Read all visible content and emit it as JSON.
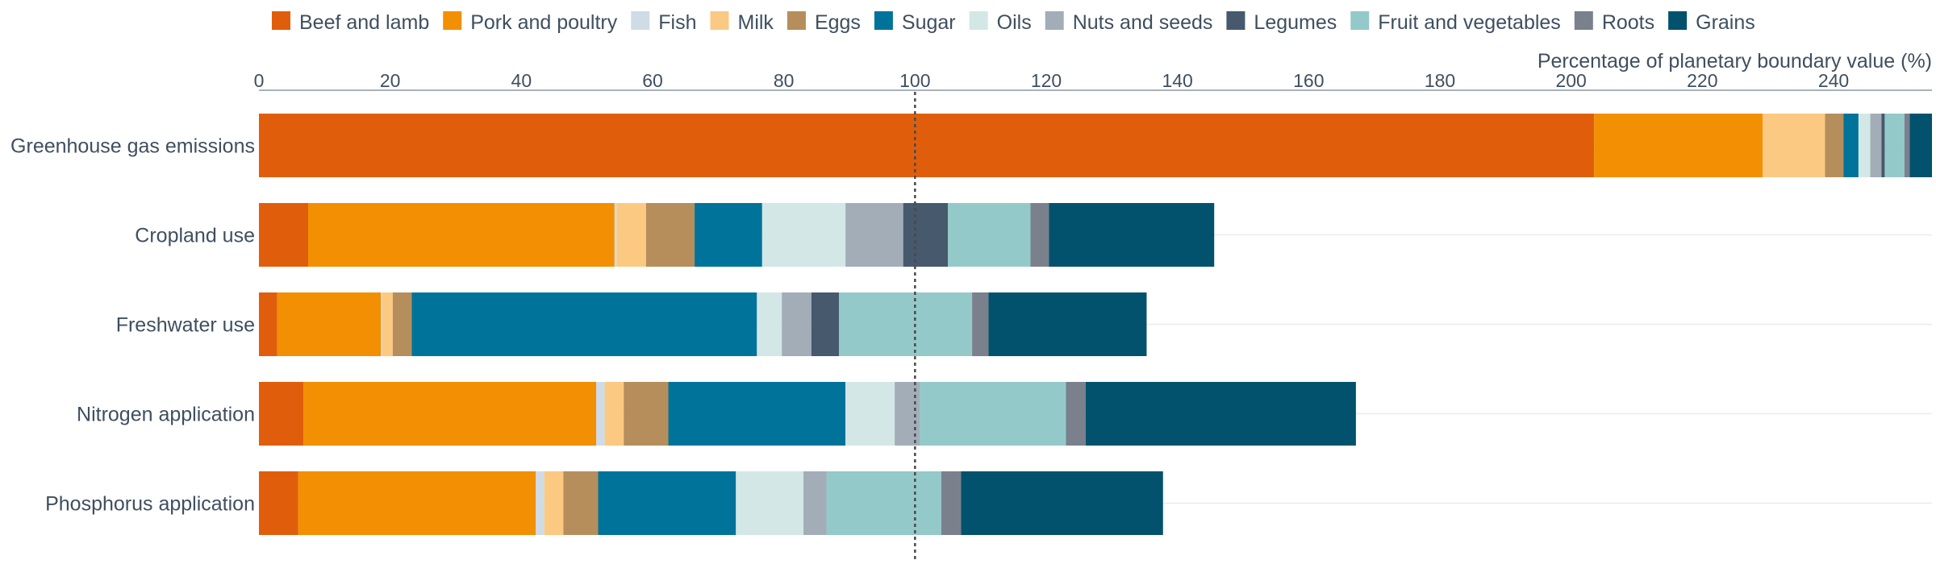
{
  "chart_data": {
    "type": "bar",
    "orientation": "horizontal",
    "stacked": true,
    "xlabel": "Percentage of planetary boundary value (%)",
    "xlim": [
      0,
      255
    ],
    "xticks": [
      0,
      20,
      40,
      60,
      80,
      100,
      120,
      140,
      160,
      180,
      200,
      220,
      240
    ],
    "reference_line": 100,
    "grid": "horizontal row lines",
    "legend_position": "top",
    "categories": [
      "Greenhouse gas emissions",
      "Cropland use",
      "Freshwater use",
      "Nitrogen application",
      "Phosphorus application"
    ],
    "series": [
      {
        "name": "Beef and lamb",
        "color": "#e05e0b",
        "values": [
          203.5,
          7.5,
          2.8,
          6.8,
          6.0
        ]
      },
      {
        "name": "Pork and poultry",
        "color": "#f28f02",
        "values": [
          25.7,
          46.7,
          15.8,
          44.6,
          36.2
        ]
      },
      {
        "name": "Fish",
        "color": "#cfdbe5",
        "values": [
          0.0,
          0.3,
          0.2,
          1.3,
          1.3
        ]
      },
      {
        "name": "Milk",
        "color": "#fbc982",
        "values": [
          9.5,
          4.5,
          1.6,
          2.9,
          2.9
        ]
      },
      {
        "name": "Eggs",
        "color": "#b68e5b",
        "values": [
          2.8,
          7.4,
          2.9,
          6.8,
          5.3
        ]
      },
      {
        "name": "Sugar",
        "color": "#00739a",
        "values": [
          2.3,
          10.3,
          52.6,
          27.0,
          21.0
        ]
      },
      {
        "name": "Oils",
        "color": "#d3e7e6",
        "values": [
          1.8,
          12.7,
          3.8,
          7.5,
          10.3
        ]
      },
      {
        "name": "Nuts and seeds",
        "color": "#a2adb8",
        "values": [
          1.7,
          8.8,
          4.5,
          3.8,
          3.5
        ]
      },
      {
        "name": "Legumes",
        "color": "#46596d",
        "values": [
          0.5,
          6.8,
          4.2,
          0.0,
          0.0
        ]
      },
      {
        "name": "Fruit and vegetables",
        "color": "#94c9c9",
        "values": [
          3.0,
          12.6,
          20.3,
          22.3,
          17.5
        ]
      },
      {
        "name": "Roots",
        "color": "#7a808c",
        "values": [
          0.8,
          2.8,
          2.5,
          3.0,
          3.0
        ]
      },
      {
        "name": "Grains",
        "color": "#02526d",
        "values": [
          3.4,
          25.2,
          24.1,
          41.2,
          30.8
        ]
      }
    ]
  }
}
